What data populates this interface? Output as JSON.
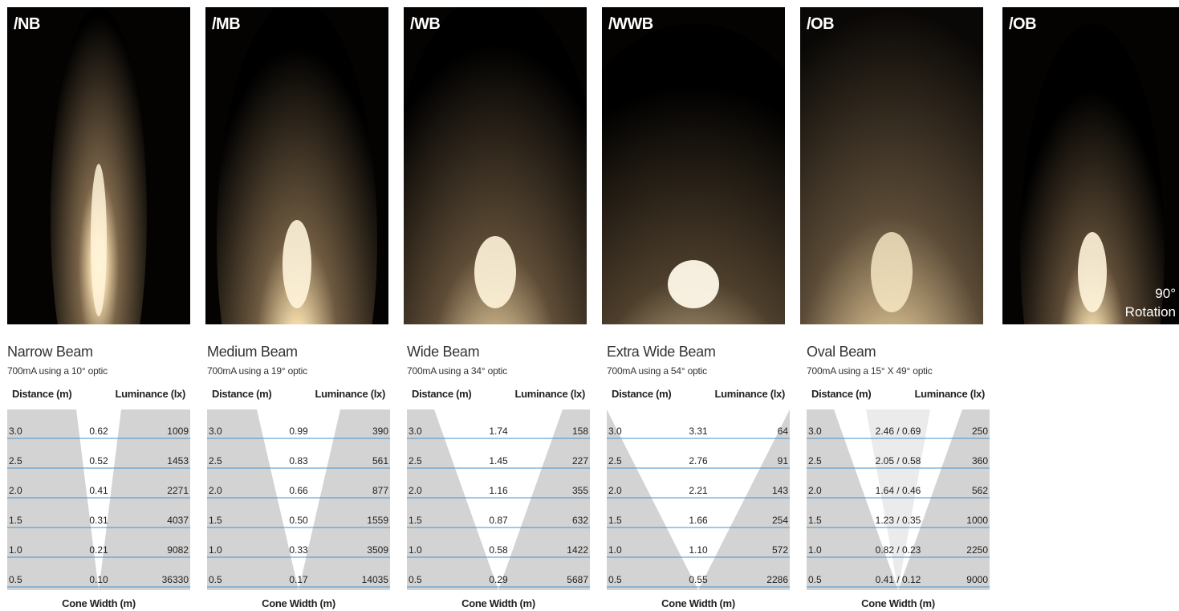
{
  "photos": [
    {
      "label": "/NB"
    },
    {
      "label": "/MB"
    },
    {
      "label": "/WB"
    },
    {
      "label": "/WWB"
    },
    {
      "label": "/OB"
    },
    {
      "label": "/OB",
      "note_line1": "90°",
      "note_line2": "Rotation"
    }
  ],
  "headers": {
    "distance": "Distance (m)",
    "luminance": "Luminance (lx)",
    "cone_width": "Cone Width (m)"
  },
  "beams": [
    {
      "title": "Narrow Beam",
      "subtitle": "700mA using a 10° optic",
      "rows": [
        {
          "distance": "3.0",
          "width": "0.62",
          "lux": "1009"
        },
        {
          "distance": "2.5",
          "width": "0.52",
          "lux": "1453"
        },
        {
          "distance": "2.0",
          "width": "0.41",
          "lux": "2271"
        },
        {
          "distance": "1.5",
          "width": "0.31",
          "lux": "4037"
        },
        {
          "distance": "1.0",
          "width": "0.21",
          "lux": "9082"
        },
        {
          "distance": "0.5",
          "width": "0.10",
          "lux": "36330"
        }
      ]
    },
    {
      "title": "Medium Beam",
      "subtitle": "700mA using a 19° optic",
      "rows": [
        {
          "distance": "3.0",
          "width": "0.99",
          "lux": "390"
        },
        {
          "distance": "2.5",
          "width": "0.83",
          "lux": "561"
        },
        {
          "distance": "2.0",
          "width": "0.66",
          "lux": "877"
        },
        {
          "distance": "1.5",
          "width": "0.50",
          "lux": "1559"
        },
        {
          "distance": "1.0",
          "width": "0.33",
          "lux": "3509"
        },
        {
          "distance": "0.5",
          "width": "0.17",
          "lux": "14035"
        }
      ]
    },
    {
      "title": "Wide Beam",
      "subtitle": "700mA using a 34° optic",
      "rows": [
        {
          "distance": "3.0",
          "width": "1.74",
          "lux": "158"
        },
        {
          "distance": "2.5",
          "width": "1.45",
          "lux": "227"
        },
        {
          "distance": "2.0",
          "width": "1.16",
          "lux": "355"
        },
        {
          "distance": "1.5",
          "width": "0.87",
          "lux": "632"
        },
        {
          "distance": "1.0",
          "width": "0.58",
          "lux": "1422"
        },
        {
          "distance": "0.5",
          "width": "0.29",
          "lux": "5687"
        }
      ]
    },
    {
      "title": "Extra Wide Beam",
      "subtitle": "700mA using a 54° optic",
      "rows": [
        {
          "distance": "3.0",
          "width": "3.31",
          "lux": "64"
        },
        {
          "distance": "2.5",
          "width": "2.76",
          "lux": "91"
        },
        {
          "distance": "2.0",
          "width": "2.21",
          "lux": "143"
        },
        {
          "distance": "1.5",
          "width": "1.66",
          "lux": "254"
        },
        {
          "distance": "1.0",
          "width": "1.10",
          "lux": "572"
        },
        {
          "distance": "0.5",
          "width": "0.55",
          "lux": "2286"
        }
      ]
    },
    {
      "title": "Oval Beam",
      "subtitle": "700mA using a 15° X 49° optic",
      "rows": [
        {
          "distance": "3.0",
          "width": "2.46 / 0.69",
          "lux": "250"
        },
        {
          "distance": "2.5",
          "width": "2.05 / 0.58",
          "lux": "360"
        },
        {
          "distance": "2.0",
          "width": "1.64 / 0.46",
          "lux": "562"
        },
        {
          "distance": "1.5",
          "width": "1.23 / 0.35",
          "lux": "1000"
        },
        {
          "distance": "1.0",
          "width": "0.82 / 0.23",
          "lux": "2250"
        },
        {
          "distance": "0.5",
          "width": "0.41 / 0.12",
          "lux": "9000"
        }
      ]
    }
  ],
  "colors": {
    "cone_fill": "#d3d3d3",
    "inner_cone_fill": "#ebebeb",
    "row_line": "#4a90c8",
    "glow": "#fff2d6"
  }
}
